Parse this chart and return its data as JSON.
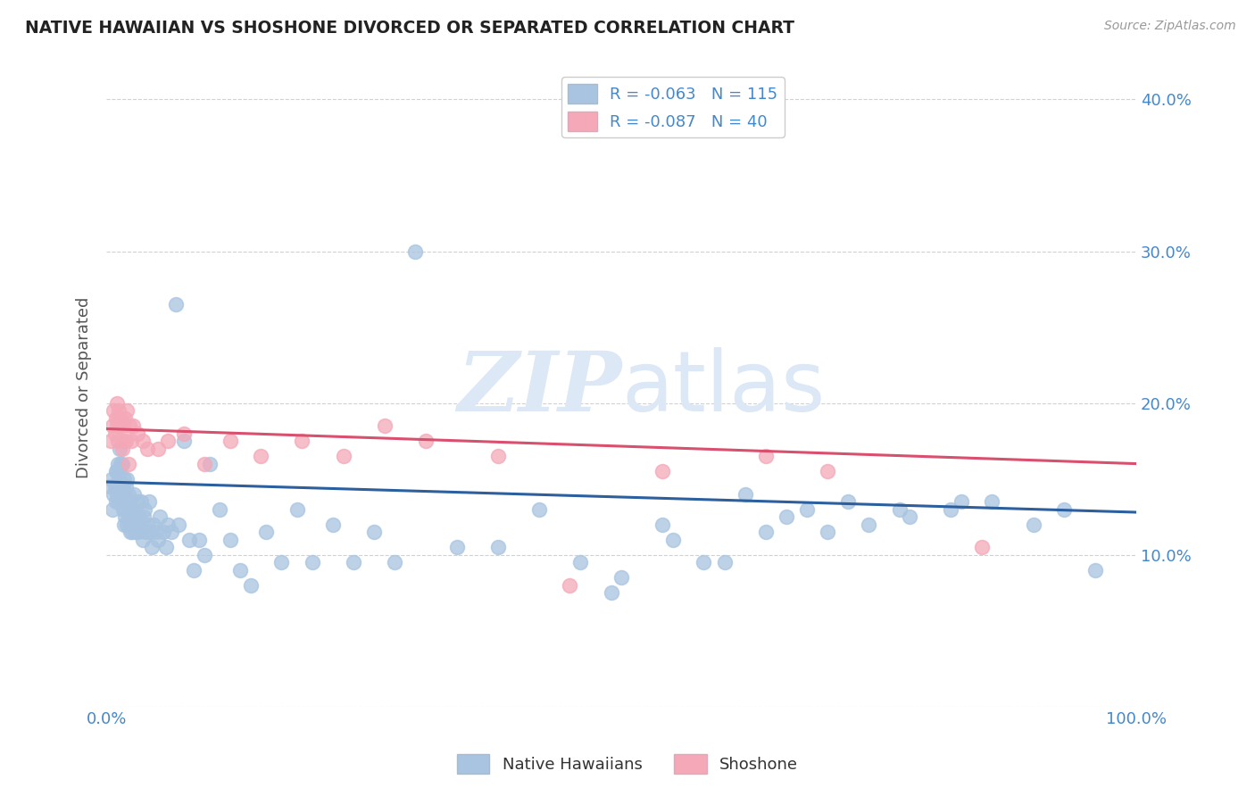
{
  "title": "NATIVE HAWAIIAN VS SHOSHONE DIVORCED OR SEPARATED CORRELATION CHART",
  "source": "Source: ZipAtlas.com",
  "ylabel": "Divorced or Separated",
  "xlim": [
    0,
    1.0
  ],
  "ylim": [
    0,
    0.42
  ],
  "xticks": [
    0.0,
    0.1,
    0.2,
    0.3,
    0.4,
    0.5,
    0.6,
    0.7,
    0.8,
    0.9,
    1.0
  ],
  "xticklabels": [
    "0.0%",
    "",
    "",
    "",
    "",
    "",
    "",
    "",
    "",
    "",
    "100.0%"
  ],
  "yticks": [
    0.0,
    0.1,
    0.2,
    0.3,
    0.4
  ],
  "left_yticklabels": [
    "",
    "",
    "",
    "",
    ""
  ],
  "right_yticklabels": [
    "",
    "10.0%",
    "20.0%",
    "30.0%",
    "40.0%"
  ],
  "blue_R": -0.063,
  "blue_N": 115,
  "pink_R": -0.087,
  "pink_N": 40,
  "legend_label_blue": "Native Hawaiians",
  "legend_label_pink": "Shoshone",
  "blue_color": "#a8c4e0",
  "pink_color": "#f4a8b8",
  "blue_line_color": "#2c5f9e",
  "pink_line_color": "#d94f6e",
  "title_color": "#222222",
  "axis_label_color": "#555555",
  "tick_color": "#4488cc",
  "watermark_color": "#dce8f5",
  "blue_x": [
    0.003,
    0.005,
    0.006,
    0.007,
    0.008,
    0.009,
    0.009,
    0.01,
    0.01,
    0.011,
    0.011,
    0.012,
    0.012,
    0.013,
    0.013,
    0.013,
    0.014,
    0.014,
    0.015,
    0.015,
    0.015,
    0.016,
    0.016,
    0.017,
    0.017,
    0.017,
    0.018,
    0.018,
    0.019,
    0.019,
    0.02,
    0.02,
    0.02,
    0.021,
    0.021,
    0.022,
    0.022,
    0.023,
    0.023,
    0.024,
    0.025,
    0.025,
    0.026,
    0.027,
    0.027,
    0.028,
    0.029,
    0.03,
    0.03,
    0.031,
    0.032,
    0.033,
    0.034,
    0.035,
    0.036,
    0.037,
    0.038,
    0.04,
    0.041,
    0.042,
    0.044,
    0.046,
    0.048,
    0.05,
    0.052,
    0.055,
    0.058,
    0.06,
    0.063,
    0.067,
    0.07,
    0.075,
    0.08,
    0.085,
    0.09,
    0.095,
    0.1,
    0.11,
    0.12,
    0.13,
    0.14,
    0.155,
    0.17,
    0.185,
    0.2,
    0.22,
    0.24,
    0.26,
    0.28,
    0.3,
    0.34,
    0.38,
    0.42,
    0.46,
    0.5,
    0.54,
    0.58,
    0.62,
    0.66,
    0.7,
    0.74,
    0.78,
    0.82,
    0.86,
    0.9,
    0.93,
    0.96,
    0.83,
    0.77,
    0.72,
    0.68,
    0.64,
    0.6,
    0.55,
    0.49
  ],
  "blue_y": [
    0.145,
    0.15,
    0.13,
    0.14,
    0.145,
    0.135,
    0.155,
    0.14,
    0.155,
    0.145,
    0.16,
    0.135,
    0.15,
    0.14,
    0.155,
    0.17,
    0.145,
    0.16,
    0.135,
    0.145,
    0.16,
    0.13,
    0.145,
    0.12,
    0.135,
    0.15,
    0.125,
    0.14,
    0.13,
    0.145,
    0.12,
    0.135,
    0.15,
    0.125,
    0.14,
    0.12,
    0.135,
    0.115,
    0.13,
    0.12,
    0.115,
    0.13,
    0.12,
    0.125,
    0.14,
    0.115,
    0.125,
    0.12,
    0.135,
    0.115,
    0.125,
    0.12,
    0.135,
    0.11,
    0.125,
    0.13,
    0.115,
    0.12,
    0.135,
    0.115,
    0.105,
    0.12,
    0.115,
    0.11,
    0.125,
    0.115,
    0.105,
    0.12,
    0.115,
    0.265,
    0.12,
    0.175,
    0.11,
    0.09,
    0.11,
    0.1,
    0.16,
    0.13,
    0.11,
    0.09,
    0.08,
    0.115,
    0.095,
    0.13,
    0.095,
    0.12,
    0.095,
    0.115,
    0.095,
    0.3,
    0.105,
    0.105,
    0.13,
    0.095,
    0.085,
    0.12,
    0.095,
    0.14,
    0.125,
    0.115,
    0.12,
    0.125,
    0.13,
    0.135,
    0.12,
    0.13,
    0.09,
    0.135,
    0.13,
    0.135,
    0.13,
    0.115,
    0.095,
    0.11,
    0.075
  ],
  "pink_x": [
    0.004,
    0.006,
    0.007,
    0.008,
    0.009,
    0.01,
    0.01,
    0.011,
    0.012,
    0.013,
    0.014,
    0.015,
    0.016,
    0.017,
    0.018,
    0.019,
    0.02,
    0.021,
    0.022,
    0.024,
    0.026,
    0.03,
    0.035,
    0.04,
    0.05,
    0.06,
    0.075,
    0.095,
    0.12,
    0.15,
    0.19,
    0.23,
    0.27,
    0.31,
    0.38,
    0.45,
    0.54,
    0.64,
    0.7,
    0.85
  ],
  "pink_y": [
    0.175,
    0.185,
    0.195,
    0.18,
    0.19,
    0.185,
    0.2,
    0.175,
    0.195,
    0.185,
    0.19,
    0.17,
    0.185,
    0.175,
    0.19,
    0.175,
    0.195,
    0.16,
    0.185,
    0.175,
    0.185,
    0.18,
    0.175,
    0.17,
    0.17,
    0.175,
    0.18,
    0.16,
    0.175,
    0.165,
    0.175,
    0.165,
    0.185,
    0.175,
    0.165,
    0.08,
    0.155,
    0.165,
    0.155,
    0.105
  ]
}
